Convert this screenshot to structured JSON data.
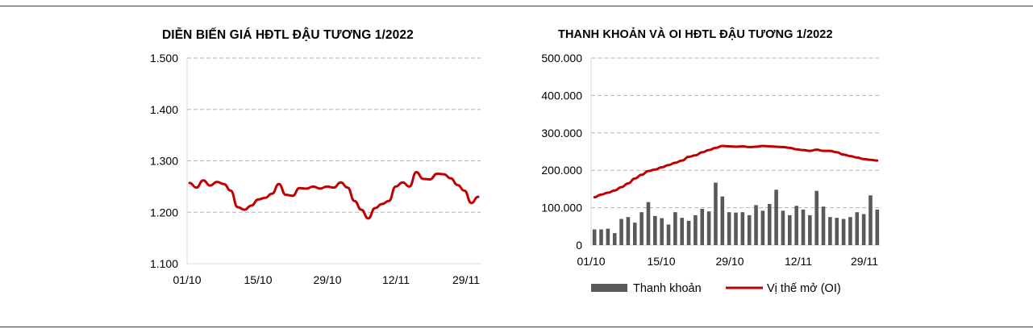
{
  "chart_data": [
    {
      "type": "line",
      "title": "DIỄN BIẾN GIÁ HĐTL ĐẬU TƯƠNG 1/2022",
      "ylim": [
        1100,
        1500
      ],
      "y_ticks": [
        1100,
        1200,
        1300,
        1400,
        1500
      ],
      "y_tick_labels": [
        "1.100",
        "1.200",
        "1.300",
        "1.400",
        "1.500"
      ],
      "x_tick_labels": [
        "01/10",
        "15/10",
        "29/10",
        "12/11",
        "29/11"
      ],
      "grid": "horizontal dashed",
      "line_color": "#c00000",
      "series": [
        {
          "values": [
            1257,
            1248,
            1262,
            1252,
            1259,
            1255,
            1242,
            1210,
            1205,
            1213,
            1225,
            1228,
            1236,
            1255,
            1234,
            1232,
            1247,
            1246,
            1250,
            1246,
            1250,
            1248,
            1258,
            1248,
            1222,
            1205,
            1188,
            1208,
            1216,
            1222,
            1250,
            1258,
            1250,
            1278,
            1265,
            1264,
            1275,
            1274,
            1266,
            1253,
            1242,
            1218,
            1230
          ]
        }
      ]
    },
    {
      "type": "bar+line",
      "title": "THANH KHOẢN VÀ OI HĐTL ĐẬU TƯƠNG 1/2022",
      "ylim": [
        0,
        500000
      ],
      "y_ticks": [
        0,
        100000,
        200000,
        300000,
        400000,
        500000
      ],
      "y_tick_labels": [
        "0",
        "100.000",
        "200.000",
        "300.000",
        "400.000",
        "500.000"
      ],
      "x_tick_labels": [
        "01/10",
        "15/10",
        "29/10",
        "12/11",
        "29/11"
      ],
      "grid": "horizontal dashed",
      "legend_position": "bottom",
      "series": [
        {
          "name": "Thanh khoản",
          "type": "bar",
          "color": "#595959",
          "values": [
            42000,
            42000,
            44000,
            32000,
            70000,
            75000,
            60000,
            88000,
            115000,
            78000,
            72000,
            55000,
            88000,
            73000,
            65000,
            80000,
            97000,
            90000,
            167000,
            130000,
            88000,
            87000,
            88000,
            80000,
            107000,
            92000,
            110000,
            148000,
            92000,
            80000,
            105000,
            95000,
            80000,
            145000,
            103000,
            75000,
            73000,
            70000,
            75000,
            88000,
            83000,
            133000,
            95000
          ]
        },
        {
          "name": "Vị thế mở (OI)",
          "type": "line",
          "color": "#c00000",
          "values": [
            128000,
            135000,
            140000,
            146000,
            155000,
            165000,
            178000,
            188000,
            198000,
            202000,
            208000,
            214000,
            220000,
            226000,
            236000,
            240000,
            248000,
            254000,
            260000,
            265000,
            264000,
            263000,
            264000,
            262000,
            263000,
            265000,
            264000,
            263000,
            262000,
            260000,
            256000,
            254000,
            252000,
            255000,
            252000,
            252000,
            248000,
            242000,
            238000,
            234000,
            230000,
            228000,
            226000
          ]
        }
      ]
    }
  ]
}
